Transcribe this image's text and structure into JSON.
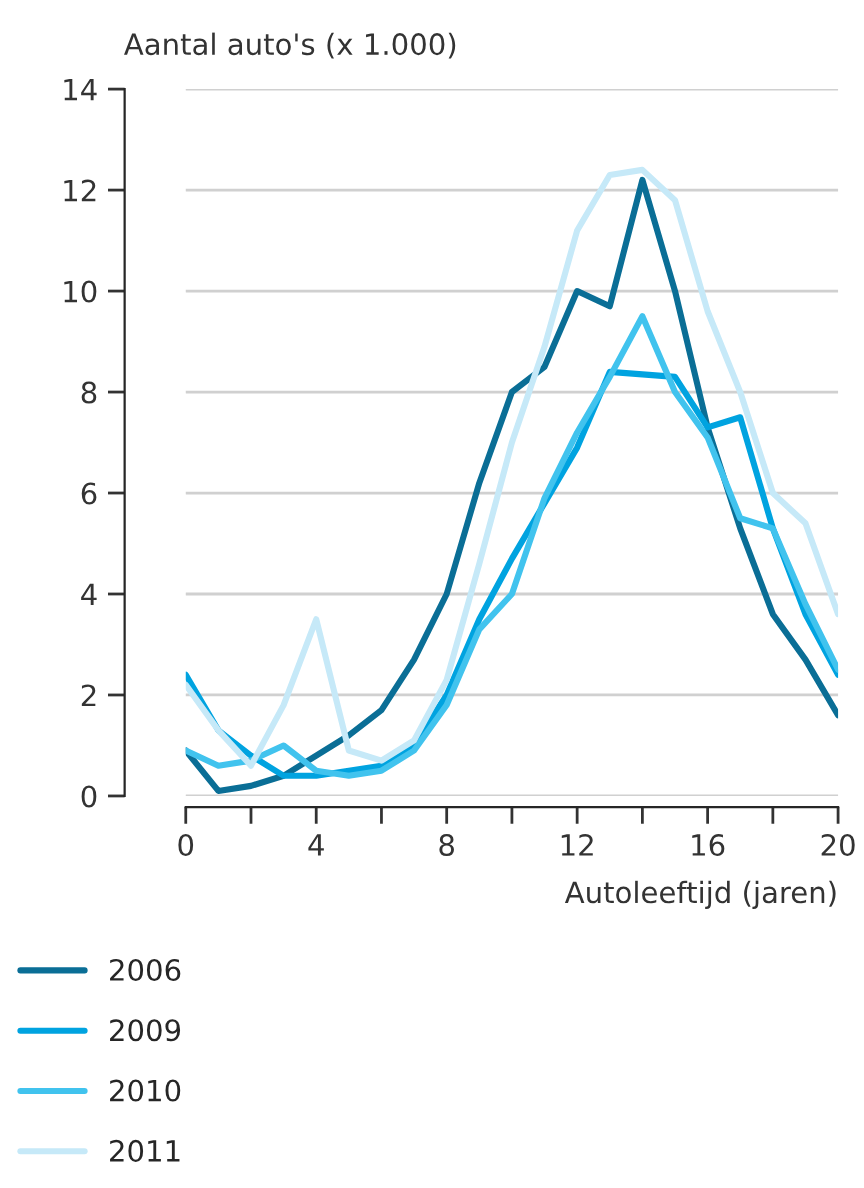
{
  "chart_data": {
    "type": "line",
    "ylabel": "Aantal auto's (x 1.000)",
    "xlabel": "Autoleeftijd (jaren)",
    "x": [
      0,
      1,
      2,
      3,
      4,
      5,
      6,
      7,
      8,
      9,
      10,
      11,
      12,
      13,
      14,
      15,
      16,
      17,
      18,
      19,
      20
    ],
    "series": [
      {
        "name": "2006",
        "color": "#0a6e96",
        "values": [
          0.9,
          0.1,
          0.2,
          0.4,
          0.8,
          1.2,
          1.7,
          2.7,
          4.0,
          6.2,
          8.0,
          8.5,
          10.0,
          9.7,
          12.2,
          10.0,
          7.3,
          5.3,
          3.6,
          2.7,
          1.6
        ]
      },
      {
        "name": "2009",
        "color": "#00a3e0",
        "values": [
          2.4,
          1.3,
          0.8,
          0.4,
          0.4,
          0.5,
          0.6,
          1.0,
          2.0,
          3.5,
          4.7,
          5.8,
          6.9,
          8.4,
          8.35,
          8.3,
          7.3,
          7.5,
          5.3,
          3.6,
          2.4
        ]
      },
      {
        "name": "2010",
        "color": "#41c3ee",
        "values": [
          0.9,
          0.6,
          0.7,
          1.0,
          0.5,
          0.4,
          0.5,
          0.9,
          1.8,
          3.3,
          4.0,
          5.9,
          7.2,
          8.3,
          9.5,
          8.0,
          7.1,
          5.5,
          5.3,
          3.8,
          2.5
        ]
      },
      {
        "name": "2011",
        "color": "#c6e9f8",
        "values": [
          2.2,
          1.3,
          0.6,
          1.8,
          3.5,
          0.9,
          0.7,
          1.1,
          2.3,
          4.6,
          7.0,
          8.9,
          11.2,
          12.3,
          12.4,
          11.8,
          9.6,
          8.0,
          6.0,
          5.4,
          3.6
        ]
      }
    ],
    "xlim": [
      0,
      20
    ],
    "xticks": [
      0,
      {
        "value": 2,
        "label": null
      },
      4,
      {
        "value": 6,
        "label": null
      },
      8,
      {
        "value": 10,
        "label": null
      },
      12,
      {
        "value": 14,
        "label": null
      },
      16,
      {
        "value": 18,
        "label": null
      },
      20
    ],
    "ylim": [
      0,
      14
    ],
    "yticks": [
      0,
      2,
      4,
      6,
      8,
      10,
      12,
      14
    ],
    "grid": "y",
    "legend": "bottom left",
    "marker": "none",
    "line_style": "solid"
  }
}
